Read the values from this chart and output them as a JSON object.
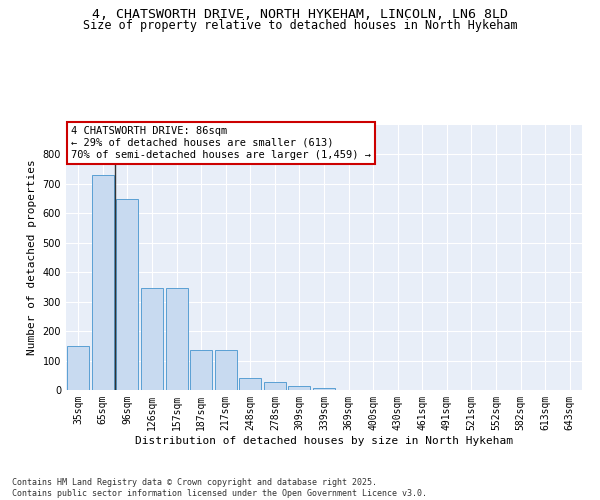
{
  "title_line1": "4, CHATSWORTH DRIVE, NORTH HYKEHAM, LINCOLN, LN6 8LD",
  "title_line2": "Size of property relative to detached houses in North Hykeham",
  "xlabel": "Distribution of detached houses by size in North Hykeham",
  "ylabel": "Number of detached properties",
  "bar_values": [
    150,
    730,
    650,
    345,
    345,
    135,
    135,
    42,
    28,
    12,
    8,
    0,
    0,
    0,
    0,
    0,
    0,
    0,
    0,
    0,
    0
  ],
  "categories": [
    "35sqm",
    "65sqm",
    "96sqm",
    "126sqm",
    "157sqm",
    "187sqm",
    "217sqm",
    "248sqm",
    "278sqm",
    "309sqm",
    "339sqm",
    "369sqm",
    "400sqm",
    "430sqm",
    "461sqm",
    "491sqm",
    "521sqm",
    "552sqm",
    "582sqm",
    "613sqm",
    "643sqm"
  ],
  "bar_color": "#c8daf0",
  "bar_edge_color": "#5a9fd4",
  "vline_color": "#333333",
  "annotation_text": "4 CHATSWORTH DRIVE: 86sqm\n← 29% of detached houses are smaller (613)\n70% of semi-detached houses are larger (1,459) →",
  "annotation_box_edgecolor": "#cc0000",
  "ylim": [
    0,
    900
  ],
  "yticks": [
    0,
    100,
    200,
    300,
    400,
    500,
    600,
    700,
    800
  ],
  "bg_color": "#e8eef8",
  "grid_color": "#ffffff",
  "footer_line1": "Contains HM Land Registry data © Crown copyright and database right 2025.",
  "footer_line2": "Contains public sector information licensed under the Open Government Licence v3.0.",
  "title_fontsize": 9.5,
  "subtitle_fontsize": 8.5,
  "axis_label_fontsize": 8,
  "tick_fontsize": 7,
  "annotation_fontsize": 7.5,
  "footer_fontsize": 6
}
